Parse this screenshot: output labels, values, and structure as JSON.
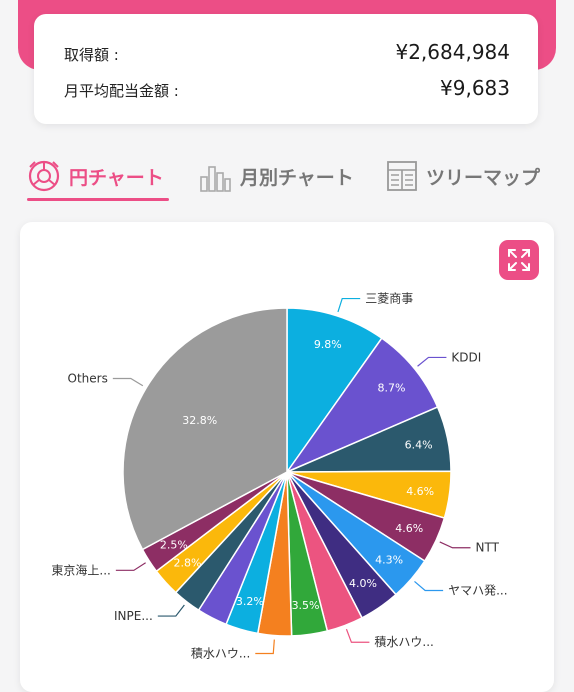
{
  "summary": {
    "acquisition_label": "取得額 :",
    "acquisition_value": "¥2,684,984",
    "monthly_dividend_label": "月平均配当金額 :",
    "monthly_dividend_value": "¥9,683"
  },
  "tabs": [
    {
      "label": "円チャート",
      "icon": "pie-chart-icon",
      "active": true
    },
    {
      "label": "月別チャート",
      "icon": "bar-chart-icon",
      "active": false
    },
    {
      "label": "ツリーマップ",
      "icon": "treemap-icon",
      "active": false
    }
  ],
  "colors": {
    "accent": "#ec4e86"
  },
  "chart_data": {
    "type": "pie",
    "title": "",
    "slices": [
      {
        "label": "三菱商事",
        "value": 9.8,
        "value_label": "9.8%",
        "color": "#0cafe0",
        "outer_label": true
      },
      {
        "label": "KDDI",
        "value": 8.7,
        "value_label": "8.7%",
        "color": "#6a52cf",
        "outer_label": true
      },
      {
        "label": "",
        "value": 6.4,
        "value_label": "6.4%",
        "color": "#2b596d",
        "outer_label": false
      },
      {
        "label": "",
        "value": 4.6,
        "value_label": "4.6%",
        "color": "#fbb80b",
        "outer_label": false
      },
      {
        "label": "NTT",
        "value": 4.6,
        "value_label": "4.6%",
        "color": "#8d2e64",
        "outer_label": true
      },
      {
        "label": "ヤマハ発...",
        "value": 4.3,
        "value_label": "4.3%",
        "color": "#2b98ee",
        "outer_label": true
      },
      {
        "label": "",
        "value": 4.0,
        "value_label": "4.0%",
        "color": "#3f2d82",
        "outer_label": false
      },
      {
        "label": "積水ハウ...",
        "value": 3.6,
        "value_label": "",
        "color": "#ec5480",
        "outer_label": true
      },
      {
        "label": "",
        "value": 3.5,
        "value_label": "3.5%",
        "color": "#31a83a",
        "outer_label": false
      },
      {
        "label": "積水ハウ...",
        "value": 3.3,
        "value_label": "",
        "color": "#f4801f",
        "outer_label": true
      },
      {
        "label": "",
        "value": 3.2,
        "value_label": "3.2%",
        "color": "#0cafe0",
        "outer_label": false
      },
      {
        "label": "",
        "value": 3.0,
        "value_label": "",
        "color": "#6a52cf",
        "outer_label": false
      },
      {
        "label": "INPE...",
        "value": 2.8,
        "value_label": "",
        "color": "#2b596d",
        "outer_label": true
      },
      {
        "label": "",
        "value": 2.8,
        "value_label": "2.8%",
        "color": "#fbb80b",
        "outer_label": false
      },
      {
        "label": "東京海上...",
        "value": 2.5,
        "value_label": "2.5%",
        "color": "#8d2e64",
        "outer_label": true
      },
      {
        "label": "Others",
        "value": 32.8,
        "value_label": "32.8%",
        "color": "#9b9b9b",
        "outer_label": true
      }
    ]
  }
}
